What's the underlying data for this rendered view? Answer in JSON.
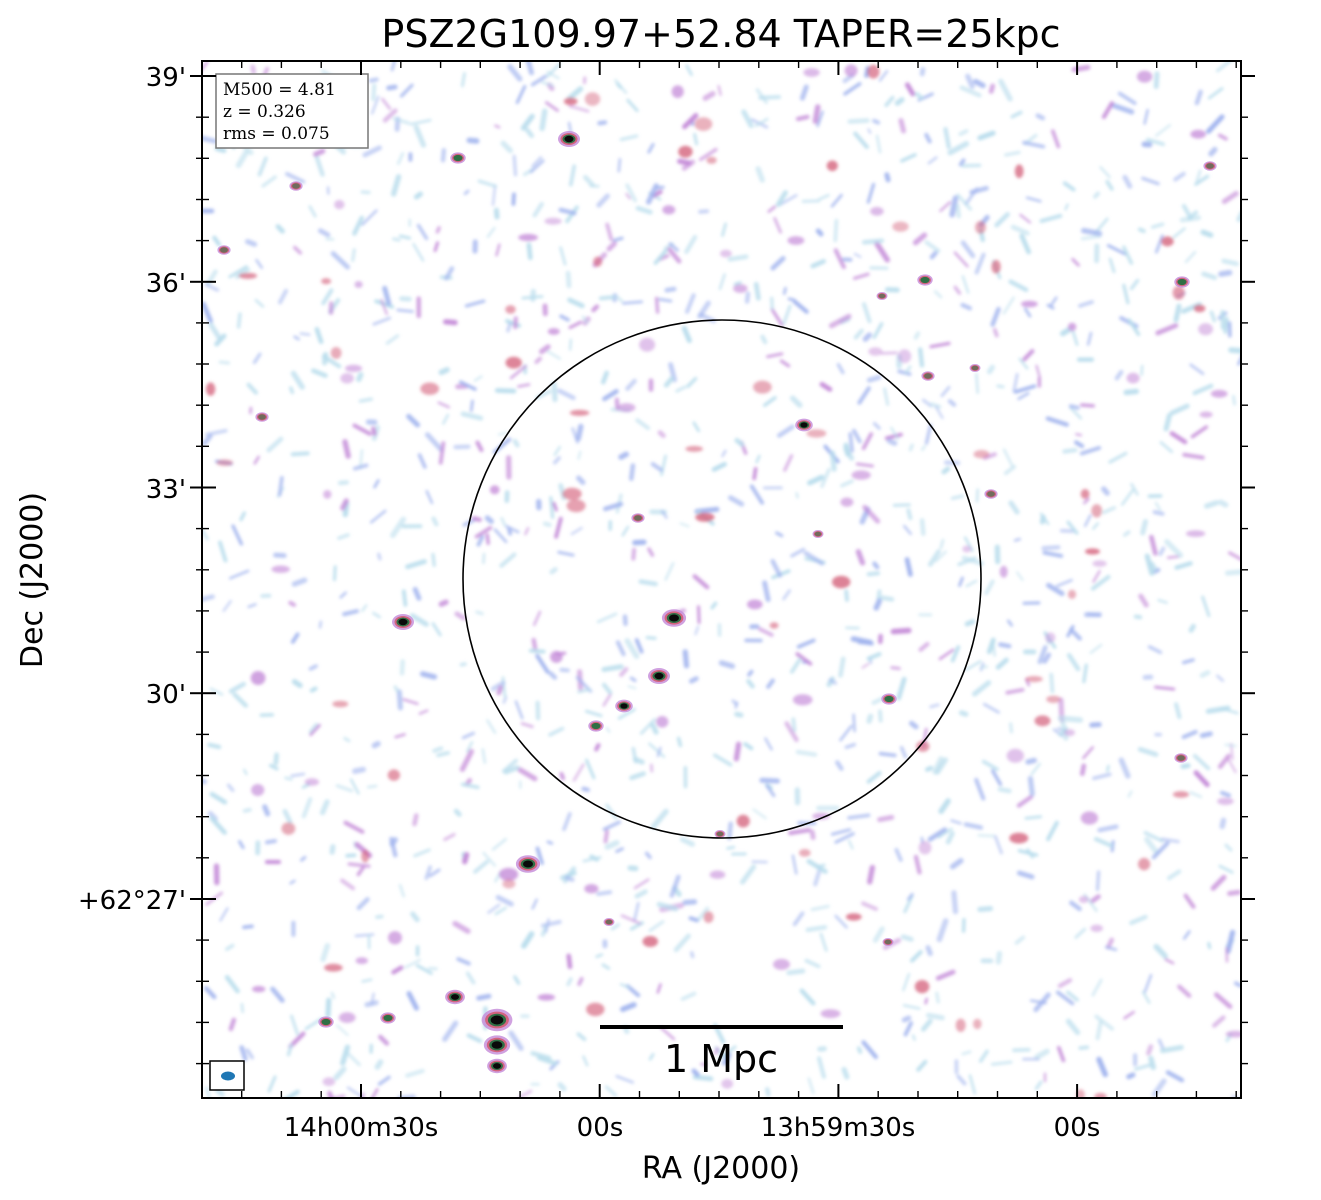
{
  "title": "PSZ2G109.97+52.84 TAPER=25kpc",
  "xlabel": "RA (J2000)",
  "ylabel": "Dec (J2000)",
  "x_ticks": [
    "14h00m30s",
    "00s",
    "13h59m30s",
    "00s"
  ],
  "y_ticks": [
    "39'",
    "36'",
    "33'",
    "30'",
    "+62°27'"
  ],
  "info_box": {
    "m500": "M500 = 4.81",
    "z": "z = 0.326",
    "rms": "rms = 0.075"
  },
  "scale_bar_label": "1 Mpc",
  "colors": {
    "noise_light": "#b7dcec",
    "noise_blue": "#9fb2ee",
    "noise_purple": "#c48ad8",
    "source_red": "#d4607a",
    "source_green": "#2f6f45",
    "source_core": "#0a0a0a",
    "beam": "#1f77b4"
  },
  "icons": {
    "beam": "beam-ellipse-icon"
  }
}
